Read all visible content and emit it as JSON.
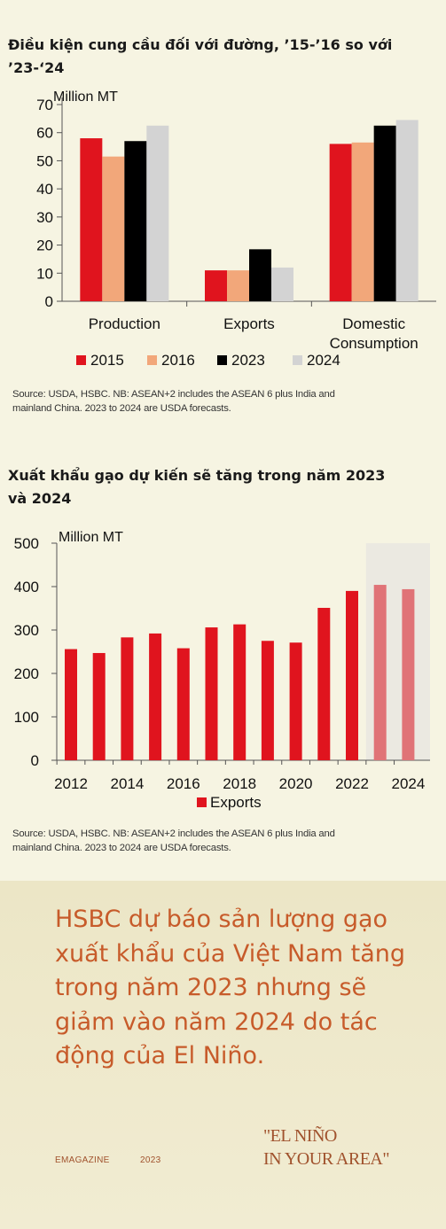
{
  "chart1": {
    "heading": "Điều kiện cung cầu đối với đường, ’15-’16 so với ’23-‘24",
    "heading_line1": "Điều kiện cung cầu đối với đường, ’15-’16 so với",
    "heading_line2": "’23-‘24",
    "source_line1": "Source: USDA, HSBC. NB: ASEAN+2 includes the ASEAN 6 plus India and",
    "source_line2": "mainland China. 2023 to 2024 are USDA forecasts."
  },
  "chart2": {
    "heading_line1": "Xuất khẩu gạo dự kiến sẽ tăng trong năm 2023",
    "heading_line2": "và 2024",
    "source_line1": "Source: USDA, HSBC. NB: ASEAN+2 includes the ASEAN 6 plus India and",
    "source_line2": "mainland China. 2023 to 2024 are USDA forecasts."
  },
  "quote": {
    "text": "HSBC dự báo sản lượng gạo xuất khẩu của Việt Nam tăng trong năm 2023 nhưng sẽ giảm vào năm 2024 do tác động của El Niño."
  },
  "footer": {
    "brand": "EMAGAZINE",
    "year": "2023",
    "tagline": "\"EL NIÑO\nIN YOUR AREA\""
  },
  "colors": {
    "s2015": "#e0141e",
    "s2016": "#f2a77a",
    "s2023": "#000000",
    "s2024": "#d3d3d3",
    "exports": "#e0141e",
    "exports_forecast": "#e07377",
    "forecast_shade": "#ebe9e1",
    "quote": "#c75b2a"
  },
  "chart_data": [
    {
      "type": "bar",
      "categories": [
        "Production",
        "Exports",
        "Domestic Consumption"
      ],
      "category_lines": [
        [
          "Production"
        ],
        [
          "Exports"
        ],
        [
          "Domestic",
          "Consumption"
        ]
      ],
      "series": [
        {
          "name": "2015",
          "values": [
            58,
            11,
            56
          ]
        },
        {
          "name": "2016",
          "values": [
            51.5,
            11,
            56.5
          ]
        },
        {
          "name": "2023",
          "values": [
            57,
            18.5,
            62.5
          ]
        },
        {
          "name": "2024",
          "values": [
            62.5,
            12,
            64.5
          ]
        }
      ],
      "ylabel": "Million MT",
      "ylim": [
        0,
        70
      ],
      "yticks": [
        0,
        10,
        20,
        30,
        40,
        50,
        60,
        70
      ],
      "legend_position": "bottom",
      "grid": false
    },
    {
      "type": "bar",
      "categories": [
        "2012",
        "2013",
        "2014",
        "2015",
        "2016",
        "2017",
        "2018",
        "2019",
        "2020",
        "2021",
        "2022",
        "2023",
        "2024"
      ],
      "xtick_labels": [
        "2012",
        "2014",
        "2016",
        "2018",
        "2020",
        "2022",
        "2024"
      ],
      "series": [
        {
          "name": "Exports",
          "values": [
            256,
            247,
            283,
            292,
            258,
            306,
            313,
            275,
            271,
            351,
            390,
            404,
            394
          ]
        }
      ],
      "forecast_categories": [
        "2023",
        "2024"
      ],
      "ylabel": "Million MT",
      "ylim": [
        0,
        500
      ],
      "yticks": [
        0,
        100,
        200,
        300,
        400,
        500
      ],
      "legend_position": "bottom",
      "grid": false
    }
  ]
}
